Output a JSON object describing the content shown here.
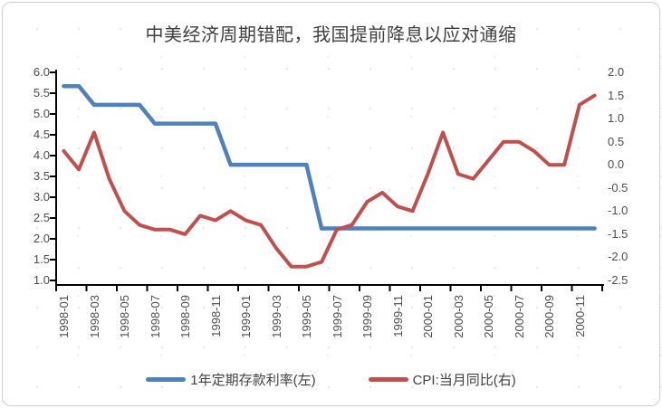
{
  "chart_data": {
    "type": "line",
    "title": "中美经济周期错配，我国提前降息以应对通缩",
    "n_points": 36,
    "label_interval": 2,
    "x_tick_labels": [
      "1998-01",
      "1998-03",
      "1998-05",
      "1998-07",
      "1998-09",
      "1998-11",
      "1999-01",
      "1999-03",
      "1999-05",
      "1999-07",
      "1999-09",
      "1999-11",
      "2000-01",
      "2000-03",
      "2000-05",
      "2000-07",
      "2000-09",
      "2000-11"
    ],
    "axis_left": {
      "max": 6.0,
      "min": 1.0,
      "ticks": [
        "6.0",
        "5.5",
        "5.0",
        "4.5",
        "4.0",
        "3.5",
        "3.0",
        "2.5",
        "2.0",
        "1.5",
        "1.0"
      ]
    },
    "axis_right": {
      "max": 2.0,
      "min": -2.5,
      "ticks": [
        "2.0",
        "1.5",
        "1.0",
        "0.5",
        "0.0",
        "-0.5",
        "-1.0",
        "-1.5",
        "-2.0",
        "-2.5"
      ]
    },
    "grid": false,
    "legend_position": "bottom",
    "colors": {
      "axis_line": "#000000",
      "tick_label": "#4d4d4d",
      "series1": "#4F81BD",
      "series2": "#C0504D"
    },
    "series": [
      {
        "name": "1年定期存款利率(左)",
        "axis": "left",
        "color": "#4F81BD",
        "values": [
          5.67,
          5.67,
          5.22,
          5.22,
          5.22,
          5.22,
          4.77,
          4.77,
          4.77,
          4.77,
          4.77,
          3.78,
          3.78,
          3.78,
          3.78,
          3.78,
          3.78,
          2.25,
          2.25,
          2.25,
          2.25,
          2.25,
          2.25,
          2.25,
          2.25,
          2.25,
          2.25,
          2.25,
          2.25,
          2.25,
          2.25,
          2.25,
          2.25,
          2.25,
          2.25,
          2.25
        ]
      },
      {
        "name": "CPI:当月同比(右)",
        "axis": "right",
        "color": "#C0504D",
        "values": [
          0.3,
          -0.1,
          0.7,
          -0.3,
          -1.0,
          -1.3,
          -1.4,
          -1.4,
          -1.5,
          -1.1,
          -1.2,
          -1.0,
          -1.2,
          -1.3,
          -1.8,
          -2.2,
          -2.2,
          -2.1,
          -1.4,
          -1.3,
          -0.8,
          -0.6,
          -0.9,
          -1.0,
          -0.2,
          0.7,
          -0.2,
          -0.3,
          0.1,
          0.5,
          0.5,
          0.3,
          0.0,
          0.0,
          1.3,
          1.5
        ]
      }
    ]
  }
}
